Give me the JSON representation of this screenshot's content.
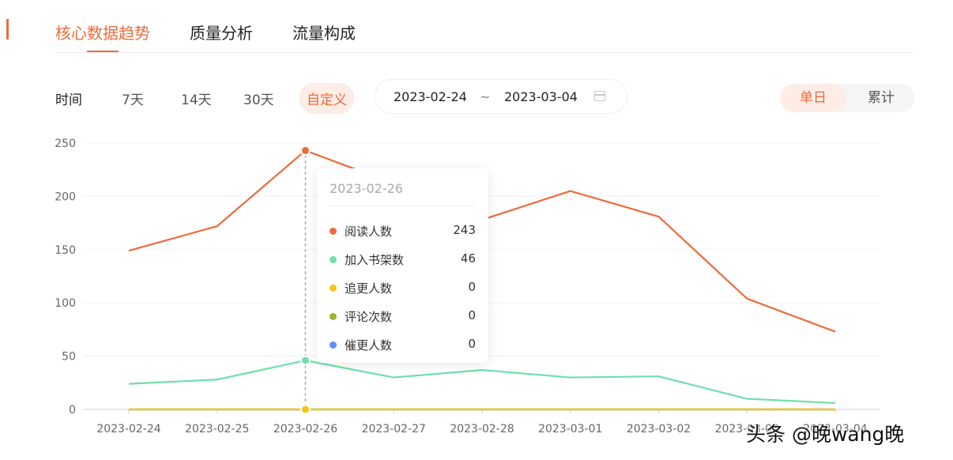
{
  "tabs": [
    {
      "label": "核心数据趋势",
      "active": true
    },
    {
      "label": "质量分析",
      "active": false
    },
    {
      "label": "流量构成",
      "active": false
    }
  ],
  "filters": {
    "time_label": "时间",
    "options": [
      "7天",
      "14天",
      "30天",
      "自定义"
    ],
    "active_option": "自定义",
    "start_date": "2023-02-24",
    "separator": "~",
    "end_date": "2023-03-04",
    "calendar_icon": "calendar-icon",
    "modes": [
      "单日",
      "累计"
    ],
    "active_mode": "单日"
  },
  "colors": {
    "accent": "#ee6b3b",
    "series": [
      "#ee6b3b",
      "#6ee0a8",
      "#f5c518",
      "#9bb52a",
      "#5b8ff9"
    ]
  },
  "chart_data": {
    "type": "line",
    "x": [
      "2023-02-24",
      "2023-02-25",
      "2023-02-26",
      "2023-02-27",
      "2023-02-28",
      "2023-03-01",
      "2023-03-02",
      "2023-03-03",
      "2023-03-04"
    ],
    "ylim": [
      0,
      250
    ],
    "yticks": [
      0,
      50,
      100,
      150,
      200,
      250
    ],
    "grid": true,
    "series": [
      {
        "name": "阅读人数",
        "values": [
          149,
          172,
          243,
          212,
          178,
          205,
          181,
          104,
          73
        ]
      },
      {
        "name": "加入书架数",
        "values": [
          24,
          28,
          46,
          30,
          37,
          30,
          31,
          10,
          6
        ]
      },
      {
        "name": "追更人数",
        "values": [
          0,
          0,
          0,
          0,
          0,
          0,
          0,
          0,
          0
        ]
      },
      {
        "name": "评论次数",
        "values": [
          0,
          0,
          0,
          0,
          0,
          0,
          0,
          0,
          0
        ]
      },
      {
        "name": "催更人数",
        "values": [
          0,
          0,
          0,
          0,
          0,
          0,
          0,
          0,
          0
        ]
      }
    ],
    "highlight_index": 2
  },
  "tooltip": {
    "title": "2023-02-26",
    "rows": [
      {
        "name": "阅读人数",
        "value": "243"
      },
      {
        "name": "加入书架数",
        "value": "46"
      },
      {
        "name": "追更人数",
        "value": "0"
      },
      {
        "name": "评论次数",
        "value": "0"
      },
      {
        "name": "催更人数",
        "value": "0"
      }
    ]
  },
  "watermark": "头条 @晚wang晚"
}
